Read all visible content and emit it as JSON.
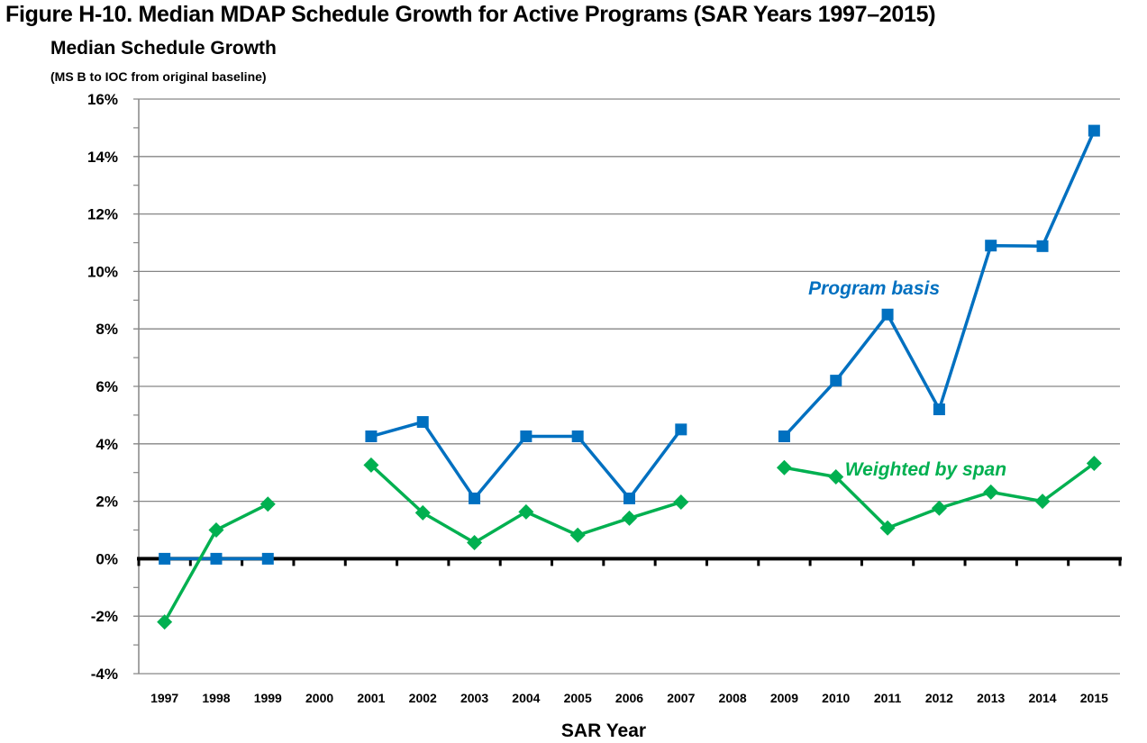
{
  "figure_title": "Figure H-10. Median MDAP Schedule Growth for Active Programs (SAR Years 1997–2015)",
  "chart_data": {
    "type": "line",
    "title": "Figure H-10. Median MDAP Schedule Growth for Active Programs (SAR Years 1997–2015)",
    "ylabel": "Median Schedule Growth",
    "ylabel_sub": "(MS B to IOC from original baseline)",
    "xlabel": "SAR Year",
    "ylim": [
      -4,
      16
    ],
    "y_unit": "%",
    "y_ticks": [
      -4,
      -2,
      0,
      2,
      4,
      6,
      8,
      10,
      12,
      14,
      16
    ],
    "y_tick_labels": [
      "-4%",
      "-2%",
      "0%",
      "2%",
      "4%",
      "6%",
      "8%",
      "10%",
      "12%",
      "14%",
      "16%"
    ],
    "grid": true,
    "categories": [
      "1997",
      "1998",
      "1999",
      "2000",
      "2001",
      "2002",
      "2003",
      "2004",
      "2005",
      "2006",
      "2007",
      "2008",
      "2009",
      "2010",
      "2011",
      "2012",
      "2013",
      "2014",
      "2015"
    ],
    "series": [
      {
        "name": "Program basis",
        "color": "#0070c0",
        "marker": "square",
        "values": [
          0,
          0,
          0,
          null,
          4.26,
          4.76,
          2.1,
          4.26,
          4.26,
          2.1,
          4.5,
          null,
          4.26,
          6.2,
          8.5,
          5.2,
          10.9,
          10.88,
          14.9
        ]
      },
      {
        "name": "Weighted by span",
        "color": "#00b050",
        "marker": "diamond",
        "values": [
          -2.2,
          1.0,
          1.9,
          null,
          3.26,
          1.6,
          0.56,
          1.63,
          0.82,
          1.41,
          1.97,
          null,
          3.17,
          2.85,
          1.07,
          1.76,
          2.32,
          2.0,
          3.32
        ]
      }
    ],
    "annotations": [
      {
        "text": "Program basis",
        "series": "Program basis",
        "near": "2011",
        "y": 9.2
      },
      {
        "text": "Weighted by span",
        "series": "Weighted by span",
        "near": "2012",
        "y": 2.9
      }
    ]
  }
}
